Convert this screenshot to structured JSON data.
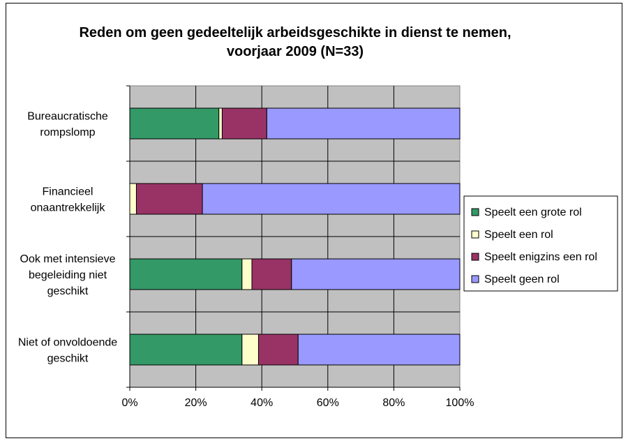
{
  "chart_data": {
    "type": "bar",
    "orientation": "horizontal",
    "stacked": "percent",
    "title": "Reden om geen gedeeltelijk arbeidsgeschikte in dienst te nemen, voorjaar 2009 (N=33)",
    "title_lines": [
      "Reden om geen gedeeltelijk arbeidsgeschikte in dienst te nemen,",
      "voorjaar 2009 (N=33)"
    ],
    "categories": [
      "Bureaucratische rompslomp",
      "Financieel onaantrekkelijk",
      "Ook met intensieve begeleiding niet geschikt",
      "Niet of onvoldoende geschikt"
    ],
    "category_lines": [
      [
        "Bureaucratische",
        "rompslomp"
      ],
      [
        "Financieel",
        "onaantrekkelijk"
      ],
      [
        "Ook met intensieve",
        "begeleiding niet",
        "geschikt"
      ],
      [
        "Niet of onvoldoende",
        "geschikt"
      ]
    ],
    "series": [
      {
        "name": "Speelt een grote rol",
        "color": "#339966",
        "values": [
          27,
          0,
          34,
          34
        ]
      },
      {
        "name": "Speelt een rol",
        "color": "#ffffcc",
        "values": [
          1,
          2,
          3,
          5
        ]
      },
      {
        "name": "Speelt enigzins een rol",
        "color": "#993366",
        "values": [
          13.5,
          20,
          12,
          12
        ]
      },
      {
        "name": "Speelt geen rol",
        "color": "#9999ff",
        "values": [
          58.5,
          78,
          51,
          49
        ]
      }
    ],
    "xlim": [
      0,
      100
    ],
    "xticks": [
      "0%",
      "20%",
      "40%",
      "60%",
      "80%",
      "100%"
    ],
    "xlabel": "",
    "ylabel": "",
    "grid": true,
    "plot_background": "#c0c0c0",
    "legend_position": "right"
  }
}
